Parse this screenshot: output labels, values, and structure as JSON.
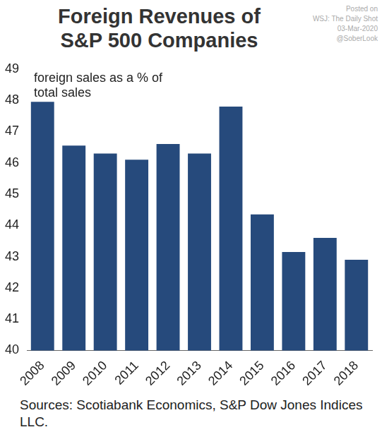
{
  "chart_data": {
    "type": "bar",
    "title": [
      "Foreign Revenues of",
      "S&P 500 Companies"
    ],
    "annotation": [
      "foreign sales as a % of",
      "total sales"
    ],
    "source": "Sources: Scotiabank Economics, S&P Dow Jones Indices LLC.",
    "watermark": [
      "Posted on",
      "WSJ: The Daily Shot",
      "03-Mar-2020",
      "@SoberLook"
    ],
    "categories": [
      "2008",
      "2009",
      "2010",
      "2011",
      "2012",
      "2013",
      "2014",
      "2015",
      "2016",
      "2017",
      "2018"
    ],
    "values": [
      47.95,
      46.55,
      46.3,
      46.1,
      46.6,
      46.3,
      47.8,
      44.35,
      43.15,
      43.6,
      42.9
    ],
    "color": "#264a7c",
    "ylim": [
      40,
      49
    ],
    "yticks": [
      40,
      41,
      42,
      43,
      44,
      45,
      46,
      47,
      48,
      49
    ],
    "grid": false,
    "data_labels": false
  }
}
